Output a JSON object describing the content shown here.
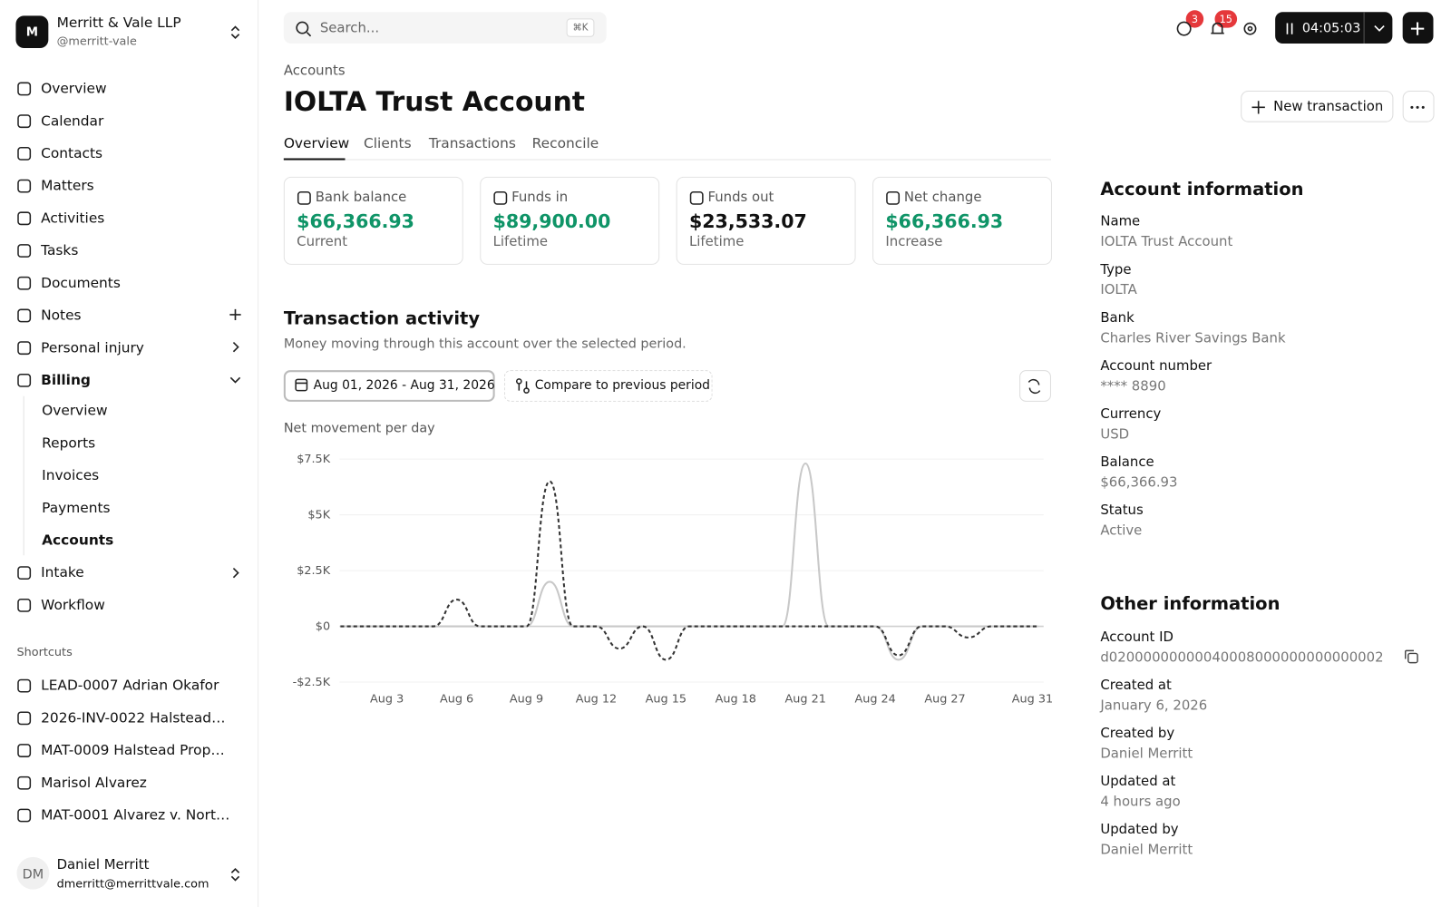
{
  "sidebar": {
    "org": {
      "initial": "M",
      "name": "Merritt & Vale LLP",
      "handle": "@merritt-vale"
    },
    "nav": [
      "Overview",
      "Calendar",
      "Contacts",
      "Matters",
      "Activities",
      "Tasks",
      "Documents",
      "Notes",
      "Personal injury",
      "Billing"
    ],
    "billing_items": [
      "Overview",
      "Reports",
      "Invoices",
      "Payments",
      "Accounts"
    ],
    "nav_more": [
      "Intake",
      "Workflow"
    ],
    "shortcuts_title": "Shortcuts",
    "shortcuts": [
      "LEAD-0007 Adrian Okafor",
      "2026-INV-0022 Halstead…",
      "MAT-0009 Halstead Prop…",
      "Marisol Alvarez",
      "MAT-0001 Alvarez v. Nort…"
    ],
    "user": {
      "initials": "DM",
      "name": "Daniel Merritt",
      "email": "dmerritt@merrittvale.com"
    }
  },
  "topbar": {
    "search": "Search...",
    "shortcut": "⌘K",
    "messages_badge": "3",
    "notifications_badge": "15",
    "timer": "04:05:03"
  },
  "header": {
    "breadcrumb": "Accounts",
    "title": "IOLTA Trust Account",
    "tabs": [
      "Overview",
      "Clients",
      "Transactions",
      "Reconcile"
    ],
    "new_button": "New transaction"
  },
  "cards": [
    {
      "label": "Bank balance",
      "value": "$66,366.93",
      "sub": "Current",
      "color": "#0f9467"
    },
    {
      "label": "Funds in",
      "value": "$89,900.00",
      "sub": "Lifetime",
      "color": "#0f9467"
    },
    {
      "label": "Funds out",
      "value": "$23,533.07",
      "sub": "Lifetime",
      "color": "#111111"
    },
    {
      "label": "Net change",
      "value": "$66,366.93",
      "sub": "Increase",
      "color": "#0f9467"
    }
  ],
  "activity": {
    "title": "Transaction activity",
    "subtitle": "Money moving through this account over the selected period.",
    "date_range": "Aug 01, 2026 - Aug 31, 2026",
    "compare": "Compare to previous period",
    "chart_label": "Net movement per day"
  },
  "chart_data": {
    "type": "line",
    "categories": [
      null,
      null,
      "Aug 3",
      null,
      null,
      "Aug 6",
      null,
      null,
      "Aug 9",
      null,
      null,
      "Aug 12",
      null,
      null,
      "Aug 15",
      null,
      null,
      "Aug 18",
      null,
      null,
      "Aug 21",
      null,
      null,
      "Aug 24",
      null,
      null,
      "Aug 27",
      null,
      null,
      null,
      "Aug 31"
    ],
    "series": [
      {
        "color": "#333333",
        "dash": true,
        "values": [
          0,
          0,
          0,
          0,
          0,
          1200,
          0,
          0,
          0,
          6500,
          0,
          0,
          -1000,
          0,
          -1500,
          0,
          0,
          0,
          0,
          0,
          0,
          0,
          0,
          0,
          -1300,
          0,
          0,
          -500,
          0,
          0,
          0
        ]
      },
      {
        "color": "#c8c8c8",
        "dash": false,
        "values": [
          0,
          0,
          0,
          0,
          0,
          0,
          0,
          0,
          0,
          2000,
          0,
          0,
          0,
          0,
          0,
          0,
          0,
          0,
          0,
          0,
          7300,
          0,
          0,
          0,
          -1500,
          0,
          0,
          0,
          0,
          0,
          0
        ]
      }
    ],
    "ylim": [
      -2500,
      7500
    ],
    "yticks": [
      {
        "value": 7500,
        "label": "$7.5K"
      },
      {
        "value": 5000,
        "label": "$5K"
      },
      {
        "value": 2500,
        "label": "$2.5K"
      },
      {
        "value": 0,
        "label": "$0"
      },
      {
        "value": -2500,
        "label": "-$2.5K"
      }
    ],
    "grid": true
  },
  "account_info": {
    "title": "Account information",
    "fields": [
      {
        "label": "Name",
        "value": "IOLTA Trust Account"
      },
      {
        "label": "Type",
        "value": "IOLTA"
      },
      {
        "label": "Bank",
        "value": "Charles River Savings Bank"
      },
      {
        "label": "Account number",
        "value": "**** 8890"
      },
      {
        "label": "Currency",
        "value": "USD"
      },
      {
        "label": "Balance",
        "value": "$66,366.93"
      },
      {
        "label": "Status",
        "value": "Active"
      }
    ]
  },
  "other_info": {
    "title": "Other information",
    "fields": [
      {
        "label": "Account ID",
        "value": "d02000000000040008000000000000002"
      },
      {
        "label": "Created at",
        "value": "January 6, 2026"
      },
      {
        "label": "Created by",
        "value": "Daniel Merritt"
      },
      {
        "label": "Updated at",
        "value": "4 hours ago"
      },
      {
        "label": "Updated by",
        "value": "Daniel Merritt"
      }
    ]
  }
}
